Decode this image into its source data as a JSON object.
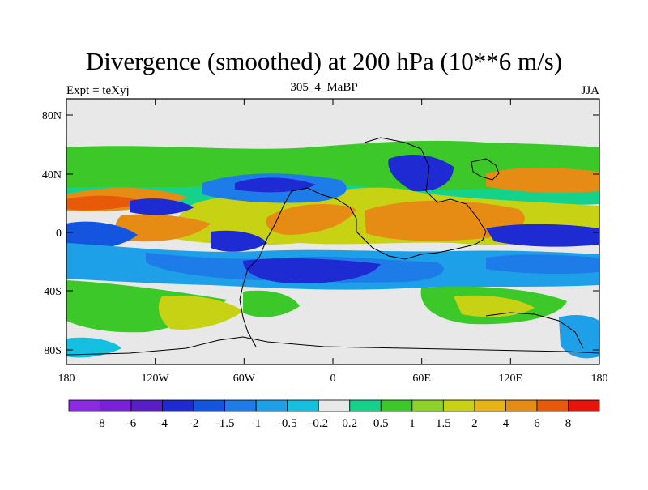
{
  "title": "Divergence (smoothed) at 200 hPa (10**6 m/s)",
  "left_label": "Expt = teXyj",
  "center_label": "305_4_MaBP",
  "right_label": "JJA",
  "lat_ticks": [
    "80N",
    "40N",
    "0",
    "40S",
    "80S"
  ],
  "lon_ticks": [
    "180",
    "120W",
    "60W",
    "0",
    "60E",
    "120E",
    "180"
  ],
  "colorbar": {
    "labels": [
      "-8",
      "-6",
      "-4",
      "-2",
      "-1.5",
      "-1",
      "-0.5",
      "-0.2",
      "0.2",
      "0.5",
      "1",
      "1.5",
      "2",
      "4",
      "6",
      "8"
    ],
    "colors": [
      "#8a2be2",
      "#7a20d8",
      "#5a1ec8",
      "#1e2ad2",
      "#1455e0",
      "#1e7ce8",
      "#1ea0e8",
      "#14bfe0",
      "#e8e8e8",
      "#14d28c",
      "#3cc828",
      "#8cd228",
      "#c8d214",
      "#e6b414",
      "#e68c14",
      "#e65a0a",
      "#e6140a"
    ]
  }
}
